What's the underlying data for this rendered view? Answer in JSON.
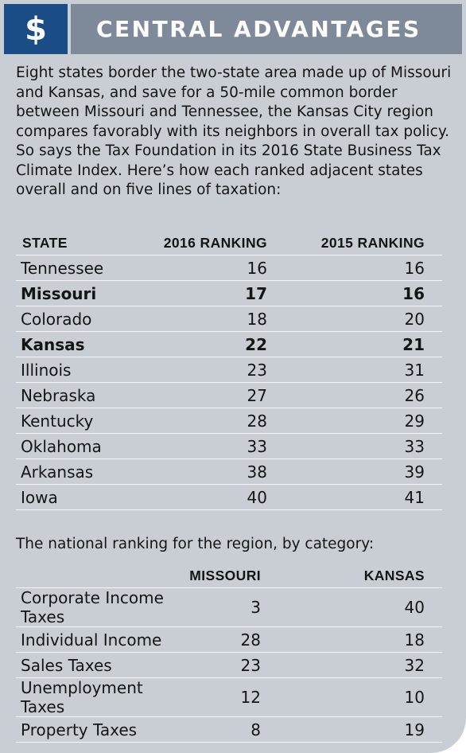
{
  "header": {
    "icon": "dollar-sign-icon",
    "icon_glyph": "$",
    "title": "CENTRAL ADVANTAGES"
  },
  "intro": "Eight states border the two-state area made up of Missouri and Kansas, and save for a 50-mile common border between Missouri and Tennessee, the Kansas City region compares favorably with its neighbors in overall tax policy. So says the Tax Foundation in its 2016 State Business Tax Climate Index. Here’s how each ranked adjacent states overall and on five lines of taxation:",
  "ranking_table": {
    "columns": [
      "STATE",
      "2016 RANKING",
      "2015 RANKING"
    ],
    "rows": [
      {
        "state": "Tennessee",
        "r2016": "16",
        "r2015": "16",
        "bold": false
      },
      {
        "state": "Missouri",
        "r2016": "17",
        "r2015": "16",
        "bold": true
      },
      {
        "state": "Colorado",
        "r2016": "18",
        "r2015": "20",
        "bold": false
      },
      {
        "state": "Kansas",
        "r2016": "22",
        "r2015": "21",
        "bold": true
      },
      {
        "state": "Illinois",
        "r2016": "23",
        "r2015": "31",
        "bold": false
      },
      {
        "state": "Nebraska",
        "r2016": "27",
        "r2015": "26",
        "bold": false
      },
      {
        "state": "Kentucky",
        "r2016": "28",
        "r2015": "29",
        "bold": false
      },
      {
        "state": "Oklahoma",
        "r2016": "33",
        "r2015": "33",
        "bold": false
      },
      {
        "state": "Arkansas",
        "r2016": "38",
        "r2015": "39",
        "bold": false
      },
      {
        "state": "Iowa",
        "r2016": "40",
        "r2015": "41",
        "bold": false
      }
    ]
  },
  "category_note": "The national ranking for the region, by category:",
  "category_table": {
    "columns": [
      "",
      "MISSOURI",
      "KANSAS"
    ],
    "rows": [
      {
        "category": "Corporate Income Taxes",
        "missouri": "3",
        "kansas": "40"
      },
      {
        "category": "Individual Income",
        "missouri": "28",
        "kansas": "18"
      },
      {
        "category": "Sales Taxes",
        "missouri": "23",
        "kansas": "32"
      },
      {
        "category": "Unemployment Taxes",
        "missouri": "12",
        "kansas": "10"
      },
      {
        "category": "Property Taxes",
        "missouri": "8",
        "kansas": "19"
      }
    ]
  },
  "colors": {
    "background": "#c9ced5",
    "icon_box": "#1a4d86",
    "title_bar": "#7e8a99",
    "rule": "#f4f6f8"
  }
}
